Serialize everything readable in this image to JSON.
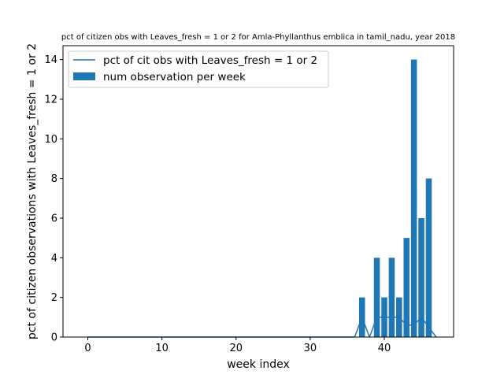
{
  "chart_data": {
    "type": "bar",
    "title": "pct of citizen obs with Leaves_fresh = 1 or 2 for Amla-Phyllanthus emblica in tamil_nadu, year 2018",
    "xlabel": "week index",
    "ylabel": "pct of citizen observations with Leaves_fresh = 1 or 2",
    "xlim": [
      -3.35,
      49.35
    ],
    "ylim": [
      0,
      14.7
    ],
    "xticks": [
      0,
      10,
      20,
      30,
      40
    ],
    "yticks": [
      0,
      2,
      4,
      6,
      8,
      10,
      12,
      14
    ],
    "grid": false,
    "legend_position": "top-left",
    "series": [
      {
        "name": "pct of cit obs with Leaves_fresh = 1 or 2",
        "kind": "line",
        "color": "#1f77b4",
        "x": [
          0,
          1,
          2,
          3,
          4,
          5,
          6,
          7,
          8,
          9,
          10,
          11,
          12,
          13,
          14,
          15,
          16,
          17,
          18,
          19,
          20,
          21,
          22,
          23,
          24,
          25,
          26,
          27,
          28,
          29,
          30,
          31,
          32,
          33,
          34,
          35,
          36,
          37,
          38,
          39,
          40,
          41,
          42,
          43,
          44,
          45,
          46,
          47
        ],
        "values": [
          0,
          0,
          0,
          0,
          0,
          0,
          0,
          0,
          0,
          0,
          0,
          0,
          0,
          0,
          0,
          0,
          0,
          0,
          0,
          0,
          0,
          0,
          0,
          0,
          0,
          0,
          0,
          0,
          0,
          0,
          0,
          0,
          0,
          0,
          0,
          0,
          0,
          1,
          0,
          1,
          1,
          1,
          1,
          0.6,
          0.6,
          1,
          0.5,
          0
        ]
      },
      {
        "name": "num observation per week",
        "kind": "bar",
        "color": "#1f77b4",
        "x": [
          37,
          39,
          40,
          41,
          42,
          43,
          44,
          45,
          46
        ],
        "values": [
          2,
          4,
          2,
          4,
          2,
          5,
          14,
          6,
          8
        ]
      }
    ]
  }
}
